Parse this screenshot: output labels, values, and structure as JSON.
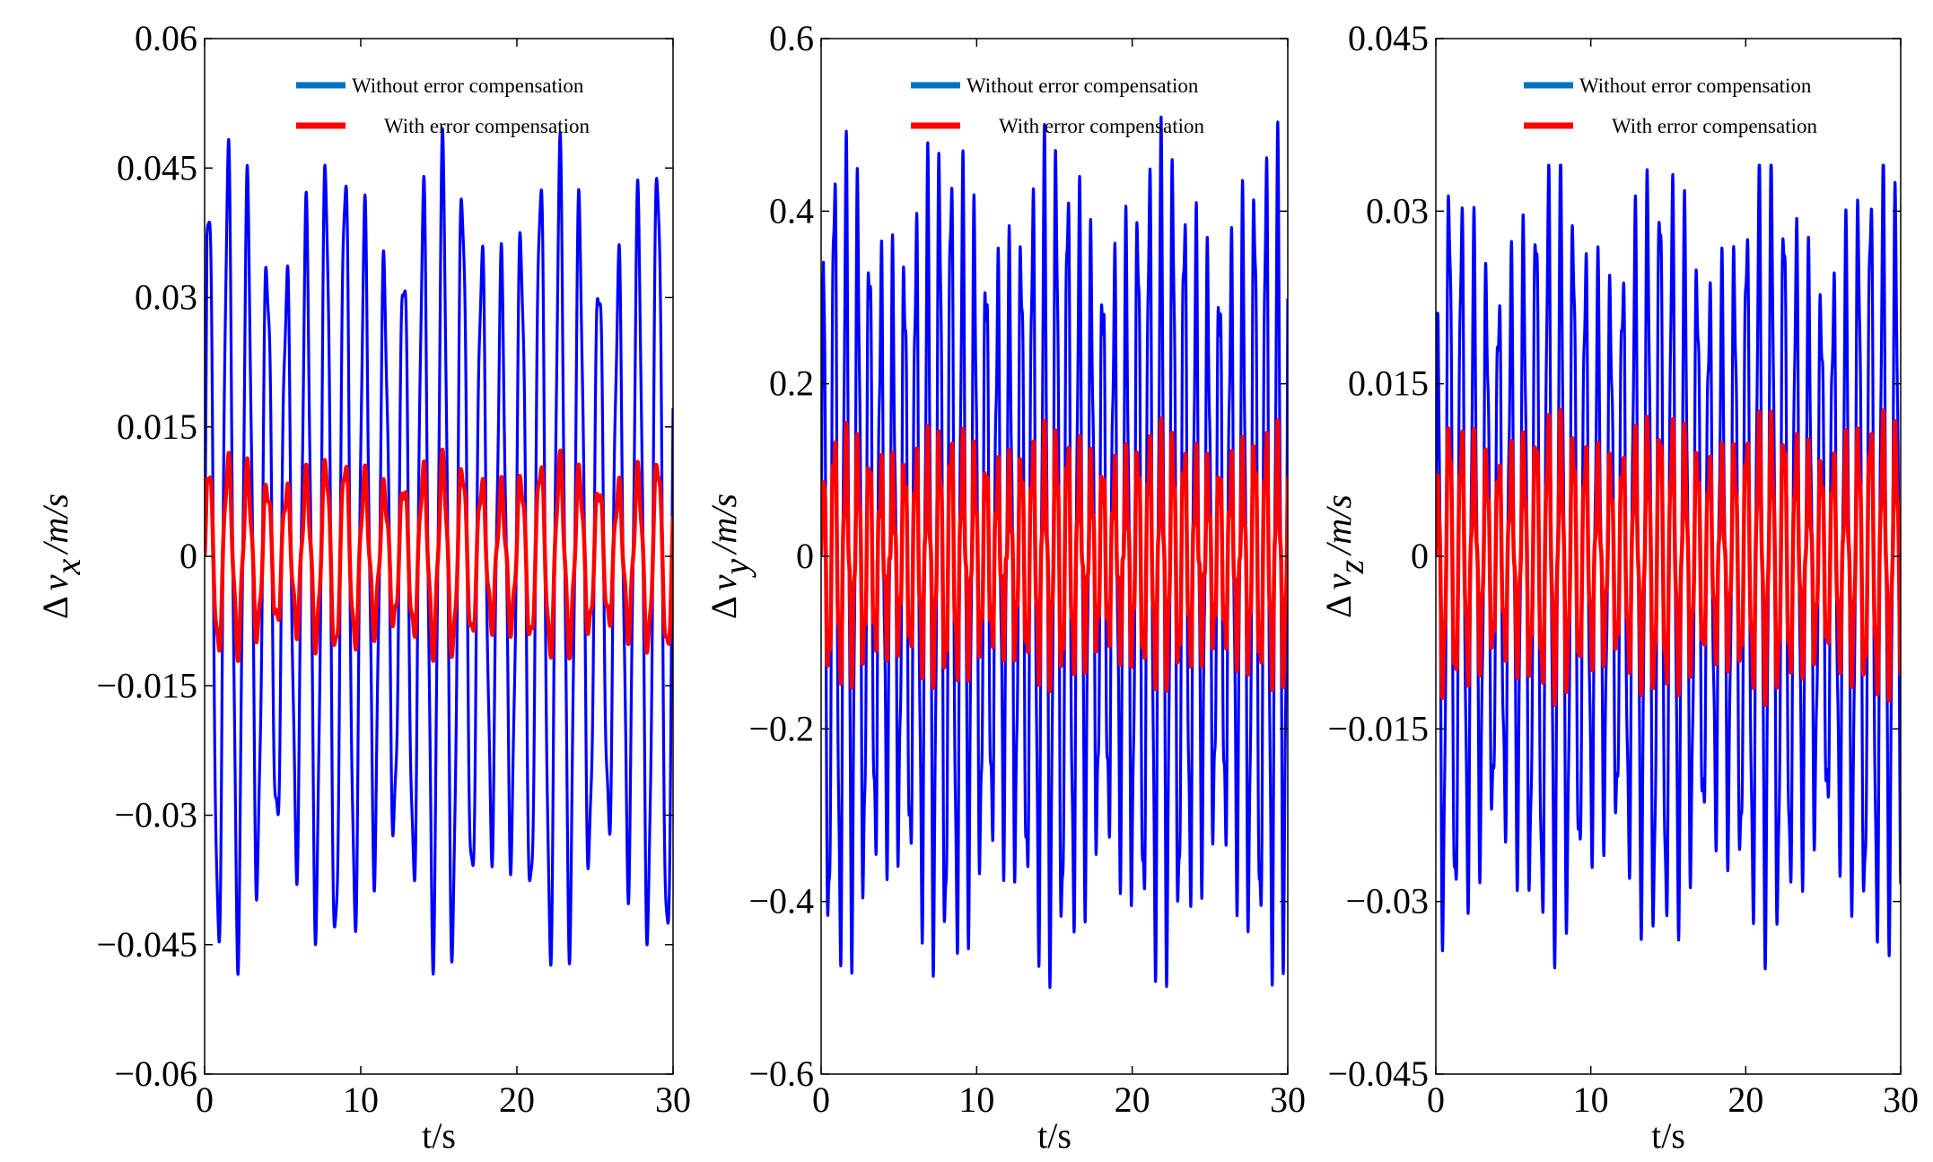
{
  "figure": {
    "charts": [
      {
        "type": "line",
        "ylabel_prefix": "Δ",
        "ylabel_var": "v",
        "ylabel_sub": "x",
        "ylabel_unit": "/m/s",
        "xlabel": "t/s",
        "xlim": [
          0,
          30
        ],
        "xticks": [
          0,
          10,
          20,
          30
        ],
        "xtick_labels": [
          "0",
          "10",
          "20",
          "30"
        ],
        "ylim": [
          -0.06,
          0.06
        ],
        "yticks": [
          -0.06,
          -0.045,
          -0.03,
          -0.015,
          0,
          0.015,
          0.03,
          0.045,
          0.06
        ],
        "ytick_labels": [
          "−0.06",
          "−0.045",
          "−0.03",
          "−0.015",
          "0",
          "0.015",
          "0.03",
          "0.045",
          "0.06"
        ],
        "legend": [
          "Without error compensation",
          "With error compensation"
        ],
        "series": [
          {
            "name": "Without error compensation",
            "color": "#0000FF",
            "period": 1.25,
            "amplitude": 0.046,
            "harmonic": 0.004,
            "phase": 0.3,
            "peak_max": 0.0515,
            "trough_min": -0.0545
          },
          {
            "name": "With error compensation",
            "color": "#FF0000",
            "period": 1.25,
            "amplitude": 0.011,
            "harmonic": 0.0015,
            "phase": 0.3,
            "peak_max": 0.0125,
            "trough_min": -0.0135
          }
        ]
      },
      {
        "type": "line",
        "ylabel_prefix": "Δ",
        "ylabel_var": "v",
        "ylabel_sub": "y",
        "ylabel_unit": "/m/s",
        "xlabel": "t/s",
        "xlim": [
          0,
          30
        ],
        "xticks": [
          0,
          10,
          20,
          30
        ],
        "xtick_labels": [
          "0",
          "10",
          "20",
          "30"
        ],
        "ylim": [
          -0.6,
          0.6
        ],
        "yticks": [
          -0.6,
          -0.4,
          -0.2,
          0,
          0.2,
          0.4,
          0.6
        ],
        "ytick_labels": [
          "−0.6",
          "−0.4",
          "−0.2",
          "0",
          "0.2",
          "0.4",
          "0.6"
        ],
        "legend": [
          "Without error compensation",
          "With error compensation"
        ],
        "series": [
          {
            "name": "Without error compensation",
            "color": "#0000FF",
            "period": 0.75,
            "amplitude": 0.45,
            "harmonic": 0.06,
            "phase": 0.7,
            "peak_max": 0.57,
            "trough_min": -0.56
          },
          {
            "name": "With error compensation",
            "color": "#FF0000",
            "period": 0.75,
            "amplitude": 0.13,
            "harmonic": 0.03,
            "phase": 0.7,
            "peak_max": 0.17,
            "trough_min": -0.16
          }
        ]
      },
      {
        "type": "line",
        "ylabel_prefix": "Δ",
        "ylabel_var": "v",
        "ylabel_sub": "z",
        "ylabel_unit": "/m/s",
        "xlabel": "t/s",
        "xlim": [
          0,
          30
        ],
        "xticks": [
          0,
          10,
          20,
          30
        ],
        "xtick_labels": [
          "0",
          "10",
          "20",
          "30"
        ],
        "ylim": [
          -0.045,
          0.045
        ],
        "yticks": [
          -0.045,
          -0.03,
          -0.015,
          0,
          0.015,
          0.03,
          0.045
        ],
        "ytick_labels": [
          "−0.045",
          "−0.03",
          "−0.015",
          "0",
          "0.015",
          "0.03",
          "0.045"
        ],
        "legend": [
          "Without error compensation",
          "With error compensation"
        ],
        "series": [
          {
            "name": "Without error compensation",
            "color": "#0000FF",
            "period": 0.8,
            "amplitude": 0.032,
            "harmonic": 0.004,
            "phase": 1.1,
            "peak_max": 0.034,
            "trough_min": -0.038
          },
          {
            "name": "With error compensation",
            "color": "#FF0000",
            "period": 0.8,
            "amplitude": 0.011,
            "harmonic": 0.002,
            "phase": 1.1,
            "peak_max": 0.013,
            "trough_min": -0.013
          }
        ]
      }
    ]
  },
  "chart_data": [
    {
      "type": "line",
      "title": "",
      "xlabel": "t/s",
      "ylabel": "Δv_x /m/s",
      "xlim": [
        0,
        30
      ],
      "ylim": [
        -0.06,
        0.06
      ],
      "legend": [
        "Without error compensation",
        "With error compensation"
      ],
      "series": [
        {
          "name": "Without error compensation",
          "approx_range": [
            -0.0545,
            0.0515
          ]
        },
        {
          "name": "With error compensation",
          "approx_range": [
            -0.0135,
            0.0125
          ]
        }
      ]
    },
    {
      "type": "line",
      "title": "",
      "xlabel": "t/s",
      "ylabel": "Δv_y /m/s",
      "xlim": [
        0,
        30
      ],
      "ylim": [
        -0.6,
        0.6
      ],
      "legend": [
        "Without error compensation",
        "With error compensation"
      ],
      "series": [
        {
          "name": "Without error compensation",
          "approx_range": [
            -0.56,
            0.57
          ]
        },
        {
          "name": "With error compensation",
          "approx_range": [
            -0.16,
            0.17
          ]
        }
      ]
    },
    {
      "type": "line",
      "title": "",
      "xlabel": "t/s",
      "ylabel": "Δv_z /m/s",
      "xlim": [
        0,
        30
      ],
      "ylim": [
        -0.045,
        0.045
      ],
      "legend": [
        "Without error compensation",
        "With error compensation"
      ],
      "series": [
        {
          "name": "Without error compensation",
          "approx_range": [
            -0.038,
            0.034
          ]
        },
        {
          "name": "With error compensation",
          "approx_range": [
            -0.013,
            0.013
          ]
        }
      ]
    }
  ]
}
